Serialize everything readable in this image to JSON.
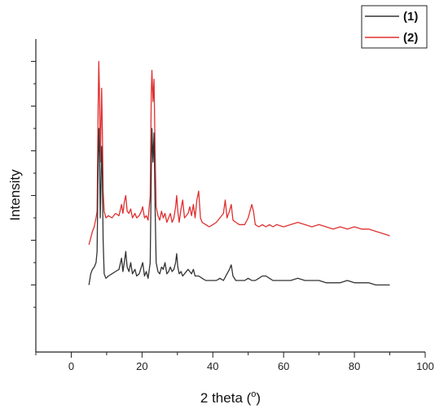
{
  "chart_data": {
    "type": "line",
    "xlabel": "2 theta (",
    "xlabel_degree": "o",
    "xlabel_close": ")",
    "ylabel": "Intensity",
    "xlim": [
      -10,
      100
    ],
    "ylim": [
      -0.3,
      1.1
    ],
    "x_ticks": [
      0,
      20,
      40,
      60,
      80,
      100
    ],
    "y_tick_labels_shown": false,
    "grid": false,
    "legend_position": "top-right",
    "series": [
      {
        "name": "(1)",
        "color": "#333333",
        "points": [
          [
            5,
            0.0
          ],
          [
            5.5,
            0.05
          ],
          [
            6,
            0.07
          ],
          [
            6.5,
            0.08
          ],
          [
            7,
            0.1
          ],
          [
            7.3,
            0.15
          ],
          [
            7.6,
            0.55
          ],
          [
            7.8,
            0.7
          ],
          [
            8.0,
            0.58
          ],
          [
            8.2,
            0.3
          ],
          [
            8.4,
            0.45
          ],
          [
            8.6,
            0.62
          ],
          [
            8.8,
            0.48
          ],
          [
            9.0,
            0.2
          ],
          [
            9.3,
            0.05
          ],
          [
            9.8,
            0.03
          ],
          [
            10.5,
            0.04
          ],
          [
            11.5,
            0.05
          ],
          [
            12.5,
            0.06
          ],
          [
            13.5,
            0.07
          ],
          [
            14.2,
            0.12
          ],
          [
            14.6,
            0.06
          ],
          [
            15.0,
            0.1
          ],
          [
            15.4,
            0.15
          ],
          [
            15.8,
            0.08
          ],
          [
            16.3,
            0.06
          ],
          [
            16.8,
            0.1
          ],
          [
            17.3,
            0.05
          ],
          [
            18.0,
            0.07
          ],
          [
            18.5,
            0.04
          ],
          [
            19.2,
            0.05
          ],
          [
            19.8,
            0.08
          ],
          [
            20.2,
            0.1
          ],
          [
            20.7,
            0.04
          ],
          [
            21.2,
            0.06
          ],
          [
            21.7,
            0.03
          ],
          [
            22.3,
            0.1
          ],
          [
            22.6,
            0.5
          ],
          [
            22.8,
            0.7
          ],
          [
            23.1,
            0.55
          ],
          [
            23.4,
            0.68
          ],
          [
            23.7,
            0.35
          ],
          [
            24.0,
            0.1
          ],
          [
            24.5,
            0.06
          ],
          [
            25.0,
            0.05
          ],
          [
            25.5,
            0.08
          ],
          [
            26.0,
            0.07
          ],
          [
            26.5,
            0.1
          ],
          [
            27.0,
            0.05
          ],
          [
            27.5,
            0.06
          ],
          [
            28.0,
            0.08
          ],
          [
            28.5,
            0.06
          ],
          [
            29.0,
            0.07
          ],
          [
            29.5,
            0.1
          ],
          [
            29.8,
            0.14
          ],
          [
            30.1,
            0.08
          ],
          [
            30.5,
            0.05
          ],
          [
            31.0,
            0.06
          ],
          [
            31.5,
            0.04
          ],
          [
            32.0,
            0.05
          ],
          [
            33.0,
            0.07
          ],
          [
            33.5,
            0.06
          ],
          [
            34.0,
            0.05
          ],
          [
            34.5,
            0.07
          ],
          [
            35.0,
            0.04
          ],
          [
            36.0,
            0.04
          ],
          [
            37.0,
            0.03
          ],
          [
            38.0,
            0.02
          ],
          [
            39.0,
            0.02
          ],
          [
            40.0,
            0.02
          ],
          [
            41.0,
            0.02
          ],
          [
            42.0,
            0.03
          ],
          [
            43.0,
            0.02
          ],
          [
            44.0,
            0.05
          ],
          [
            44.7,
            0.07
          ],
          [
            45.2,
            0.09
          ],
          [
            45.7,
            0.04
          ],
          [
            46.5,
            0.02
          ],
          [
            47.5,
            0.02
          ],
          [
            49.0,
            0.02
          ],
          [
            50.0,
            0.03
          ],
          [
            51.0,
            0.02
          ],
          [
            52.0,
            0.02
          ],
          [
            53.0,
            0.03
          ],
          [
            54.0,
            0.04
          ],
          [
            55.0,
            0.04
          ],
          [
            56.0,
            0.03
          ],
          [
            57.0,
            0.02
          ],
          [
            58.0,
            0.02
          ],
          [
            60.0,
            0.02
          ],
          [
            62.0,
            0.02
          ],
          [
            64.0,
            0.03
          ],
          [
            66.0,
            0.02
          ],
          [
            68.0,
            0.02
          ],
          [
            70.0,
            0.02
          ],
          [
            72.0,
            0.01
          ],
          [
            74.0,
            0.01
          ],
          [
            76.0,
            0.01
          ],
          [
            78.0,
            0.02
          ],
          [
            80.0,
            0.01
          ],
          [
            82.0,
            0.01
          ],
          [
            84.0,
            0.01
          ],
          [
            86.0,
            0.0
          ],
          [
            88.0,
            0.0
          ],
          [
            90.0,
            0.0
          ]
        ]
      },
      {
        "name": "(2)",
        "color": "#e03030",
        "points": [
          [
            5,
            0.18
          ],
          [
            5.5,
            0.21
          ],
          [
            6,
            0.24
          ],
          [
            6.5,
            0.26
          ],
          [
            7,
            0.3
          ],
          [
            7.3,
            0.33
          ],
          [
            7.6,
            0.8
          ],
          [
            7.8,
            1.0
          ],
          [
            8.0,
            0.85
          ],
          [
            8.2,
            0.55
          ],
          [
            8.4,
            0.72
          ],
          [
            8.6,
            0.88
          ],
          [
            8.8,
            0.68
          ],
          [
            9.0,
            0.42
          ],
          [
            9.3,
            0.33
          ],
          [
            9.8,
            0.3
          ],
          [
            10.5,
            0.31
          ],
          [
            11.5,
            0.3
          ],
          [
            12.5,
            0.32
          ],
          [
            13.5,
            0.31
          ],
          [
            14.2,
            0.36
          ],
          [
            14.6,
            0.32
          ],
          [
            15.0,
            0.37
          ],
          [
            15.4,
            0.4
          ],
          [
            15.8,
            0.33
          ],
          [
            16.3,
            0.32
          ],
          [
            16.8,
            0.34
          ],
          [
            17.3,
            0.3
          ],
          [
            18.0,
            0.32
          ],
          [
            18.5,
            0.3
          ],
          [
            19.2,
            0.31
          ],
          [
            19.8,
            0.33
          ],
          [
            20.2,
            0.35
          ],
          [
            20.7,
            0.3
          ],
          [
            21.2,
            0.31
          ],
          [
            21.7,
            0.29
          ],
          [
            22.3,
            0.4
          ],
          [
            22.6,
            0.85
          ],
          [
            22.8,
            0.96
          ],
          [
            23.1,
            0.82
          ],
          [
            23.4,
            0.92
          ],
          [
            23.7,
            0.6
          ],
          [
            24.0,
            0.35
          ],
          [
            24.5,
            0.31
          ],
          [
            25.0,
            0.29
          ],
          [
            25.5,
            0.33
          ],
          [
            26.0,
            0.3
          ],
          [
            26.5,
            0.32
          ],
          [
            27.0,
            0.28
          ],
          [
            27.5,
            0.3
          ],
          [
            28.0,
            0.32
          ],
          [
            28.5,
            0.28
          ],
          [
            29.0,
            0.3
          ],
          [
            29.5,
            0.35
          ],
          [
            29.8,
            0.4
          ],
          [
            30.1,
            0.33
          ],
          [
            30.5,
            0.28
          ],
          [
            31.0,
            0.34
          ],
          [
            31.5,
            0.38
          ],
          [
            32.0,
            0.3
          ],
          [
            33.0,
            0.32
          ],
          [
            33.5,
            0.35
          ],
          [
            34.0,
            0.31
          ],
          [
            34.5,
            0.36
          ],
          [
            35.0,
            0.3
          ],
          [
            35.5,
            0.38
          ],
          [
            36.0,
            0.42
          ],
          [
            36.5,
            0.3
          ],
          [
            37.0,
            0.28
          ],
          [
            38.0,
            0.27
          ],
          [
            39.0,
            0.26
          ],
          [
            40.0,
            0.27
          ],
          [
            41.0,
            0.28
          ],
          [
            42.0,
            0.3
          ],
          [
            43.0,
            0.32
          ],
          [
            43.5,
            0.38
          ],
          [
            44.0,
            0.3
          ],
          [
            44.7,
            0.33
          ],
          [
            45.2,
            0.36
          ],
          [
            45.7,
            0.29
          ],
          [
            46.5,
            0.28
          ],
          [
            47.5,
            0.27
          ],
          [
            49.0,
            0.27
          ],
          [
            50.0,
            0.3
          ],
          [
            51.0,
            0.36
          ],
          [
            51.5,
            0.33
          ],
          [
            52.0,
            0.27
          ],
          [
            53.0,
            0.26
          ],
          [
            54.0,
            0.27
          ],
          [
            55.0,
            0.26
          ],
          [
            56.0,
            0.27
          ],
          [
            57.0,
            0.26
          ],
          [
            58.0,
            0.27
          ],
          [
            60.0,
            0.26
          ],
          [
            62.0,
            0.27
          ],
          [
            64.0,
            0.28
          ],
          [
            66.0,
            0.27
          ],
          [
            68.0,
            0.26
          ],
          [
            70.0,
            0.27
          ],
          [
            72.0,
            0.26
          ],
          [
            74.0,
            0.25
          ],
          [
            76.0,
            0.26
          ],
          [
            78.0,
            0.25
          ],
          [
            80.0,
            0.26
          ],
          [
            82.0,
            0.25
          ],
          [
            84.0,
            0.25
          ],
          [
            86.0,
            0.24
          ],
          [
            88.0,
            0.23
          ],
          [
            90.0,
            0.22
          ]
        ]
      }
    ]
  }
}
